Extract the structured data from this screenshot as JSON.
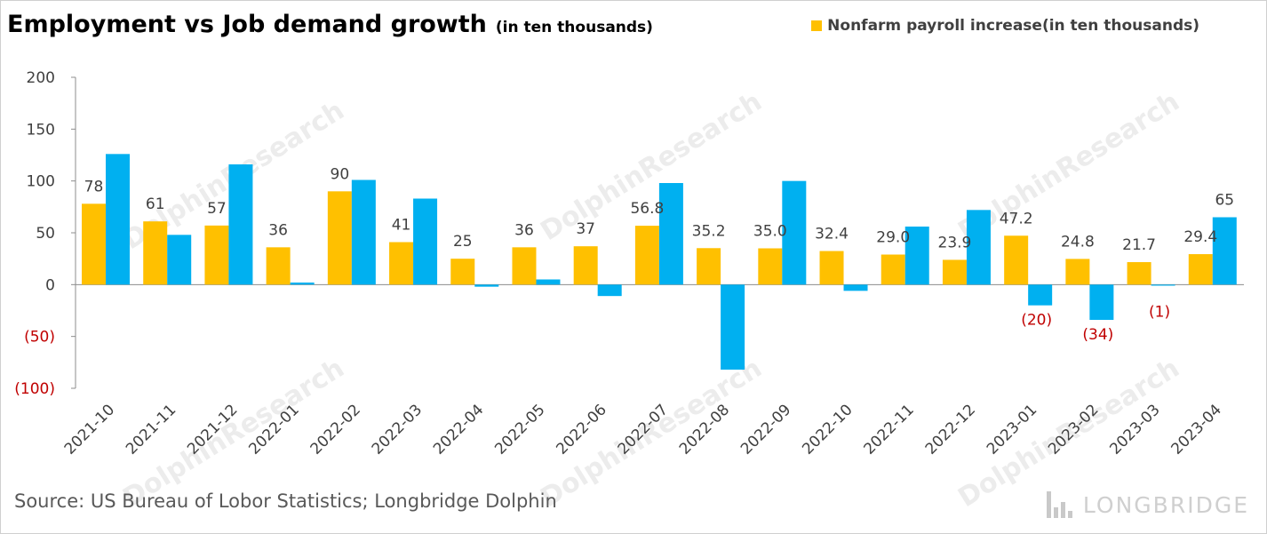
{
  "header": {
    "title": "Employment vs Job demand growth",
    "subtitle": "(in ten thousands)"
  },
  "legend": {
    "label": "Nonfarm payroll increase(in ten thousands)"
  },
  "footer": {
    "source": "Source: US Bureau of Lobor Statistics; Longbridge Dolphin",
    "brand": "LONGBRIDGE"
  },
  "watermark": {
    "text": "DolphinResearch"
  },
  "colors": {
    "payroll": "#FFC000",
    "job_demand": "#00B0F0",
    "negative_label": "#C00000"
  },
  "chart_data": {
    "type": "bar",
    "categories": [
      "2021-10",
      "2021-11",
      "2021-12",
      "2022-01",
      "2022-02",
      "2022-03",
      "2022-04",
      "2022-05",
      "2022-06",
      "2022-07",
      "2022-08",
      "2022-09",
      "2022-10",
      "2022-11",
      "2022-12",
      "2023-01",
      "2023-02",
      "2023-03",
      "2023-04"
    ],
    "ylim": [
      -100,
      200
    ],
    "yticks": [
      200,
      150,
      100,
      50,
      0,
      -50,
      -100
    ],
    "ytick_labels": [
      "200",
      "150",
      "100",
      "50",
      "0",
      "(50)",
      "(100)"
    ],
    "series": [
      {
        "name": "Nonfarm payroll increase(in ten thousands)",
        "values": [
          78,
          61,
          57,
          36,
          90,
          41,
          25,
          36,
          37,
          56.8,
          35.2,
          35.0,
          32.4,
          29.0,
          23.9,
          47.2,
          24.8,
          21.7,
          29.4
        ],
        "labels": [
          "78",
          "61",
          "57",
          "36",
          "90",
          "41",
          "25",
          "36",
          "37",
          "56.8",
          "35.2",
          "35.0",
          "32.4",
          "29.0",
          "23.9",
          "47.2",
          "24.8",
          "21.7",
          "29.4"
        ]
      },
      {
        "values": [
          126,
          48,
          116,
          2,
          101,
          83,
          -2,
          5,
          -11,
          98,
          -82,
          100,
          -6,
          56,
          72,
          -20,
          -34,
          -1,
          65
        ],
        "labels": [
          "",
          "",
          "",
          "",
          "",
          "",
          "",
          "",
          "",
          "",
          "",
          "",
          "",
          "",
          "",
          "(20)",
          "(34)",
          "(1)",
          "65"
        ]
      }
    ],
    "grid": false
  }
}
